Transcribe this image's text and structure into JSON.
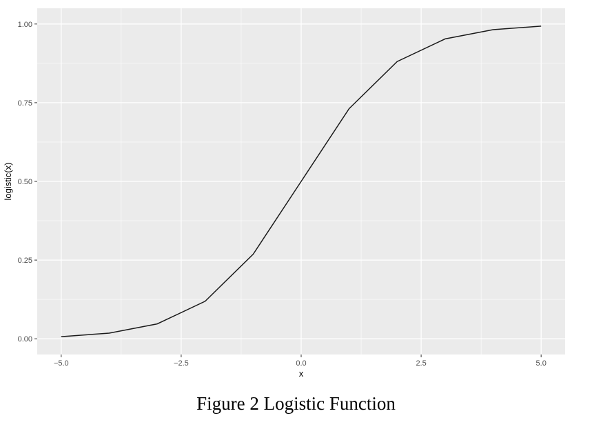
{
  "caption": "Figure 2 Logistic Function",
  "chart_data": {
    "type": "line",
    "title": "",
    "xlabel": "x",
    "ylabel": "logistic(x)",
    "xlim": [
      -5.5,
      5.5
    ],
    "ylim": [
      -0.05,
      1.05
    ],
    "x_ticks": [
      -5.0,
      -2.5,
      0.0,
      2.5,
      5.0
    ],
    "x_tick_labels": [
      "−5.0",
      "−2.5",
      "0.0",
      "2.5",
      "5.0"
    ],
    "y_ticks": [
      0.0,
      0.25,
      0.5,
      0.75,
      1.0
    ],
    "y_tick_labels": [
      "0.00",
      "0.25",
      "0.50",
      "0.75",
      "1.00"
    ],
    "grid": true,
    "legend": "none",
    "series": [
      {
        "x": [
          -5,
          -4,
          -3,
          -2,
          -1,
          0,
          1,
          2,
          3,
          4,
          5
        ],
        "y": [
          0.0067,
          0.018,
          0.0474,
          0.1192,
          0.2689,
          0.5,
          0.7311,
          0.8808,
          0.9526,
          0.982,
          0.9933
        ]
      }
    ],
    "colors": {
      "panel": "#ebebeb",
      "grid": "#ffffff",
      "line": "#1a1a1a"
    }
  }
}
